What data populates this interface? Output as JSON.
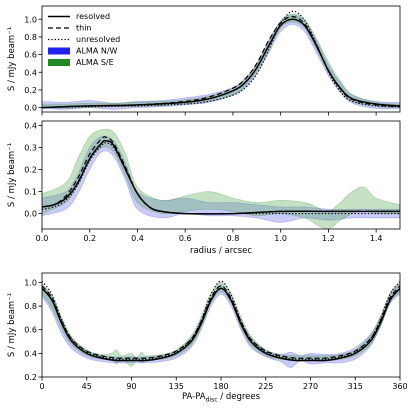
{
  "chart_data": [
    {
      "type": "line",
      "panel": "top",
      "xlim": [
        0,
        1.5
      ],
      "ylim": [
        -0.05,
        1.15
      ],
      "yticks": [
        "0.0",
        "0.2",
        "0.4",
        "0.6",
        "0.8",
        "1.0"
      ],
      "ytick_values": [
        0,
        0.2,
        0.4,
        0.6,
        0.8,
        1.0
      ],
      "xticks": [],
      "xlabel": "",
      "ylabel": "S / mJy beam⁻¹",
      "legend": {
        "placement": "top-left",
        "entries": [
          {
            "label": "resolved",
            "style": "solid"
          },
          {
            "label": "thin",
            "style": "dashed"
          },
          {
            "label": "unresolved",
            "style": "dotted"
          },
          {
            "label": "ALMA N/W",
            "style": "patch",
            "color": "#2222ee"
          },
          {
            "label": "ALMA S/E",
            "style": "patch",
            "color": "#228822"
          }
        ]
      },
      "series": [
        {
          "name": "resolved",
          "x": [
            0,
            0.2,
            0.4,
            0.6,
            0.7,
            0.8,
            0.85,
            0.9,
            0.95,
            1.0,
            1.05,
            1.1,
            1.15,
            1.2,
            1.25,
            1.3,
            1.4,
            1.5
          ],
          "y": [
            0.0,
            0.02,
            0.03,
            0.06,
            0.1,
            0.19,
            0.28,
            0.45,
            0.7,
            0.93,
            1.0,
            0.93,
            0.7,
            0.42,
            0.22,
            0.1,
            0.04,
            0.02
          ]
        },
        {
          "name": "thin",
          "x": [
            0,
            0.2,
            0.4,
            0.6,
            0.7,
            0.8,
            0.85,
            0.9,
            0.95,
            1.0,
            1.05,
            1.1,
            1.15,
            1.2,
            1.25,
            1.3,
            1.4,
            1.5
          ],
          "y": [
            0.0,
            0.02,
            0.03,
            0.07,
            0.12,
            0.22,
            0.32,
            0.5,
            0.76,
            0.96,
            1.03,
            0.95,
            0.71,
            0.42,
            0.21,
            0.09,
            0.03,
            0.01
          ]
        },
        {
          "name": "unresolved",
          "x": [
            0,
            0.2,
            0.4,
            0.6,
            0.7,
            0.8,
            0.85,
            0.9,
            0.95,
            1.0,
            1.05,
            1.1,
            1.15,
            1.2,
            1.25,
            1.3,
            1.4,
            1.5
          ],
          "y": [
            0.0,
            0.01,
            0.02,
            0.04,
            0.07,
            0.14,
            0.22,
            0.38,
            0.65,
            0.95,
            1.09,
            0.99,
            0.72,
            0.4,
            0.18,
            0.07,
            0.02,
            0.01
          ]
        },
        {
          "name": "ALMA N/W",
          "x": [
            0,
            0.1,
            0.2,
            0.3,
            0.4,
            0.5,
            0.6,
            0.7,
            0.8,
            0.85,
            0.9,
            0.95,
            1.0,
            1.05,
            1.1,
            1.15,
            1.2,
            1.25,
            1.3,
            1.4,
            1.5
          ],
          "y_low": [
            -0.01,
            -0.02,
            0.0,
            -0.02,
            0.0,
            0.01,
            0.03,
            0.06,
            0.14,
            0.22,
            0.38,
            0.62,
            0.86,
            0.94,
            0.86,
            0.62,
            0.36,
            0.17,
            0.05,
            -0.01,
            -0.01
          ],
          "y_high": [
            0.07,
            0.06,
            0.08,
            0.05,
            0.07,
            0.08,
            0.11,
            0.15,
            0.23,
            0.33,
            0.5,
            0.76,
            0.98,
            1.05,
            0.98,
            0.76,
            0.48,
            0.28,
            0.14,
            0.07,
            0.06
          ]
        },
        {
          "name": "ALMA S/E",
          "x": [
            0,
            0.1,
            0.2,
            0.3,
            0.4,
            0.5,
            0.6,
            0.7,
            0.8,
            0.85,
            0.9,
            0.95,
            1.0,
            1.05,
            1.1,
            1.15,
            1.2,
            1.25,
            1.3,
            1.4,
            1.5
          ],
          "y_low": [
            0.0,
            -0.01,
            0.0,
            0.01,
            0.01,
            0.02,
            0.04,
            0.07,
            0.15,
            0.24,
            0.41,
            0.66,
            0.9,
            0.97,
            0.9,
            0.66,
            0.4,
            0.2,
            0.07,
            0.01,
            0.0
          ],
          "y_high": [
            0.04,
            0.04,
            0.05,
            0.05,
            0.06,
            0.07,
            0.09,
            0.13,
            0.22,
            0.31,
            0.49,
            0.74,
            0.98,
            1.06,
            1.0,
            0.78,
            0.52,
            0.3,
            0.15,
            0.06,
            0.04
          ]
        }
      ]
    },
    {
      "type": "line",
      "panel": "middle",
      "xlim": [
        0,
        1.5
      ],
      "ylim": [
        -0.07,
        0.42
      ],
      "yticks": [
        "0.0",
        "0.1",
        "0.2",
        "0.3",
        "0.4"
      ],
      "ytick_values": [
        0,
        0.1,
        0.2,
        0.3,
        0.4
      ],
      "xticks": [
        "0.0",
        "0.2",
        "0.4",
        "0.6",
        "0.8",
        "1.0",
        "1.2",
        "1.4"
      ],
      "xtick_values": [
        0,
        0.2,
        0.4,
        0.6,
        0.8,
        1.0,
        1.2,
        1.4
      ],
      "xlabel": "radius / arcsec",
      "ylabel": "S / mJy beam⁻¹",
      "series": [
        {
          "name": "resolved",
          "x": [
            0,
            0.05,
            0.1,
            0.15,
            0.2,
            0.25,
            0.27,
            0.3,
            0.35,
            0.4,
            0.45,
            0.5,
            0.6,
            0.8,
            1.0,
            1.2,
            1.5
          ],
          "y": [
            0.03,
            0.04,
            0.07,
            0.14,
            0.25,
            0.32,
            0.33,
            0.31,
            0.2,
            0.09,
            0.03,
            0.01,
            0.0,
            0.0,
            0.01,
            0.01,
            0.01
          ]
        },
        {
          "name": "thin",
          "x": [
            0,
            0.05,
            0.1,
            0.15,
            0.2,
            0.25,
            0.27,
            0.3,
            0.35,
            0.4,
            0.45,
            0.5,
            0.6,
            0.8,
            1.0,
            1.2,
            1.5
          ],
          "y": [
            0.03,
            0.04,
            0.08,
            0.16,
            0.27,
            0.34,
            0.345,
            0.32,
            0.21,
            0.09,
            0.03,
            0.01,
            0.0,
            0.0,
            0.01,
            0.01,
            0.01
          ]
        },
        {
          "name": "unresolved",
          "x": [
            0,
            0.05,
            0.1,
            0.15,
            0.2,
            0.25,
            0.27,
            0.3,
            0.35,
            0.4,
            0.45,
            0.5,
            0.6,
            0.8,
            1.0,
            1.2,
            1.5
          ],
          "y": [
            0.02,
            0.03,
            0.06,
            0.13,
            0.24,
            0.31,
            0.32,
            0.3,
            0.2,
            0.09,
            0.03,
            0.01,
            0.0,
            0.0,
            0.0,
            0.0,
            0.0
          ]
        },
        {
          "name": "ALMA N/W",
          "x": [
            0,
            0.1,
            0.15,
            0.2,
            0.25,
            0.3,
            0.35,
            0.4,
            0.5,
            0.6,
            0.7,
            0.8,
            0.9,
            1.0,
            1.1,
            1.2,
            1.3,
            1.4,
            1.5
          ],
          "y_low": [
            -0.01,
            0.02,
            0.09,
            0.2,
            0.28,
            0.26,
            0.15,
            0.02,
            -0.02,
            0.0,
            -0.01,
            -0.01,
            -0.02,
            -0.04,
            -0.02,
            -0.03,
            -0.02,
            -0.02,
            -0.02
          ],
          "y_high": [
            0.07,
            0.1,
            0.18,
            0.3,
            0.35,
            0.33,
            0.23,
            0.1,
            0.06,
            0.07,
            0.05,
            0.05,
            0.04,
            0.03,
            0.03,
            0.02,
            0.02,
            0.02,
            0.02
          ]
        },
        {
          "name": "ALMA S/E",
          "x": [
            0,
            0.1,
            0.15,
            0.2,
            0.25,
            0.3,
            0.35,
            0.4,
            0.5,
            0.6,
            0.7,
            0.8,
            0.9,
            1.0,
            1.1,
            1.15,
            1.2,
            1.25,
            1.3,
            1.35,
            1.4,
            1.5
          ],
          "y_low": [
            0.0,
            0.05,
            0.13,
            0.24,
            0.3,
            0.28,
            0.17,
            0.05,
            0.0,
            0.01,
            0.02,
            0.01,
            -0.01,
            0.0,
            -0.02,
            -0.05,
            -0.07,
            -0.03,
            0.0,
            0.02,
            0.0,
            0.0
          ],
          "y_high": [
            0.09,
            0.14,
            0.25,
            0.35,
            0.38,
            0.37,
            0.27,
            0.12,
            0.06,
            0.08,
            0.1,
            0.07,
            0.05,
            0.06,
            0.05,
            0.03,
            0.01,
            0.05,
            0.1,
            0.12,
            0.07,
            0.04
          ]
        }
      ]
    },
    {
      "type": "line",
      "panel": "bottom",
      "xlim": [
        0,
        360
      ],
      "ylim": [
        0.2,
        1.08
      ],
      "yticks": [
        "0.2",
        "0.4",
        "0.6",
        "0.8",
        "1.0"
      ],
      "ytick_values": [
        0.2,
        0.4,
        0.6,
        0.8,
        1.0
      ],
      "xticks": [
        "0",
        "45",
        "90",
        "135",
        "180",
        "225",
        "270",
        "315",
        "360"
      ],
      "xtick_values": [
        0,
        45,
        90,
        135,
        180,
        225,
        270,
        315,
        360
      ],
      "xlabel": "PA-PA",
      "xlabel_sub": "disc",
      "xlabel_suffix": " / degrees",
      "ylabel": "S / mJy beam⁻¹",
      "series": [
        {
          "name": "resolved",
          "x": [
            0,
            10,
            20,
            30,
            45,
            60,
            75,
            90,
            105,
            120,
            135,
            150,
            160,
            170,
            180,
            190,
            200,
            210,
            225,
            240,
            255,
            270,
            285,
            300,
            315,
            330,
            340,
            350,
            360
          ],
          "y": [
            0.95,
            0.85,
            0.65,
            0.5,
            0.4,
            0.36,
            0.34,
            0.34,
            0.34,
            0.36,
            0.4,
            0.5,
            0.65,
            0.85,
            0.95,
            0.85,
            0.65,
            0.5,
            0.4,
            0.36,
            0.34,
            0.34,
            0.34,
            0.36,
            0.4,
            0.5,
            0.65,
            0.85,
            0.95
          ]
        },
        {
          "name": "thin",
          "x": [
            0,
            10,
            20,
            30,
            45,
            60,
            75,
            90,
            105,
            120,
            135,
            150,
            160,
            170,
            180,
            190,
            200,
            210,
            225,
            240,
            255,
            270,
            285,
            300,
            315,
            330,
            340,
            350,
            360
          ],
          "y": [
            0.97,
            0.87,
            0.67,
            0.52,
            0.42,
            0.38,
            0.36,
            0.36,
            0.36,
            0.38,
            0.42,
            0.52,
            0.67,
            0.87,
            0.97,
            0.87,
            0.67,
            0.52,
            0.42,
            0.38,
            0.36,
            0.36,
            0.36,
            0.38,
            0.42,
            0.52,
            0.67,
            0.87,
            0.97
          ]
        },
        {
          "name": "unresolved",
          "x": [
            0,
            10,
            20,
            30,
            45,
            60,
            75,
            90,
            105,
            120,
            135,
            150,
            160,
            170,
            180,
            190,
            200,
            210,
            225,
            240,
            255,
            270,
            285,
            300,
            315,
            330,
            340,
            350,
            360
          ],
          "y": [
            1.01,
            0.9,
            0.68,
            0.52,
            0.41,
            0.37,
            0.35,
            0.35,
            0.35,
            0.37,
            0.41,
            0.52,
            0.68,
            0.9,
            1.01,
            0.9,
            0.68,
            0.52,
            0.41,
            0.37,
            0.35,
            0.35,
            0.35,
            0.37,
            0.41,
            0.52,
            0.68,
            0.9,
            1.01
          ]
        },
        {
          "name": "ALMA N/W",
          "x": [
            0,
            10,
            20,
            30,
            45,
            60,
            75,
            90,
            105,
            120,
            135,
            150,
            160,
            170,
            180,
            190,
            200,
            210,
            225,
            240,
            250,
            260,
            270,
            285,
            300,
            315,
            330,
            340,
            350,
            360
          ],
          "y_low": [
            0.88,
            0.75,
            0.56,
            0.44,
            0.36,
            0.33,
            0.32,
            0.32,
            0.32,
            0.33,
            0.36,
            0.45,
            0.6,
            0.8,
            0.9,
            0.8,
            0.6,
            0.45,
            0.37,
            0.33,
            0.28,
            0.34,
            0.31,
            0.32,
            0.32,
            0.35,
            0.46,
            0.62,
            0.82,
            0.9
          ],
          "y_high": [
            0.98,
            0.88,
            0.68,
            0.52,
            0.42,
            0.38,
            0.37,
            0.37,
            0.37,
            0.38,
            0.42,
            0.53,
            0.68,
            0.88,
            0.98,
            0.88,
            0.68,
            0.53,
            0.43,
            0.39,
            0.41,
            0.38,
            0.4,
            0.39,
            0.4,
            0.45,
            0.56,
            0.7,
            0.9,
            0.99
          ]
        },
        {
          "name": "ALMA S/E",
          "x": [
            0,
            10,
            20,
            30,
            45,
            60,
            70,
            75,
            80,
            90,
            95,
            100,
            105,
            120,
            135,
            150,
            160,
            170,
            180,
            190,
            200,
            210,
            225,
            240,
            255,
            270,
            285,
            300,
            315,
            330,
            340,
            350,
            360
          ],
          "y_low": [
            0.9,
            0.78,
            0.6,
            0.47,
            0.38,
            0.35,
            0.34,
            0.31,
            0.35,
            0.29,
            0.35,
            0.32,
            0.34,
            0.35,
            0.38,
            0.47,
            0.62,
            0.83,
            0.92,
            0.83,
            0.62,
            0.47,
            0.38,
            0.35,
            0.34,
            0.34,
            0.34,
            0.35,
            0.38,
            0.47,
            0.62,
            0.83,
            0.92
          ],
          "y_high": [
            0.99,
            0.89,
            0.7,
            0.54,
            0.43,
            0.39,
            0.4,
            0.43,
            0.38,
            0.4,
            0.36,
            0.41,
            0.38,
            0.39,
            0.43,
            0.55,
            0.71,
            0.91,
            1.0,
            0.91,
            0.71,
            0.55,
            0.43,
            0.39,
            0.38,
            0.38,
            0.38,
            0.39,
            0.43,
            0.55,
            0.71,
            0.91,
            1.0
          ]
        }
      ]
    }
  ]
}
